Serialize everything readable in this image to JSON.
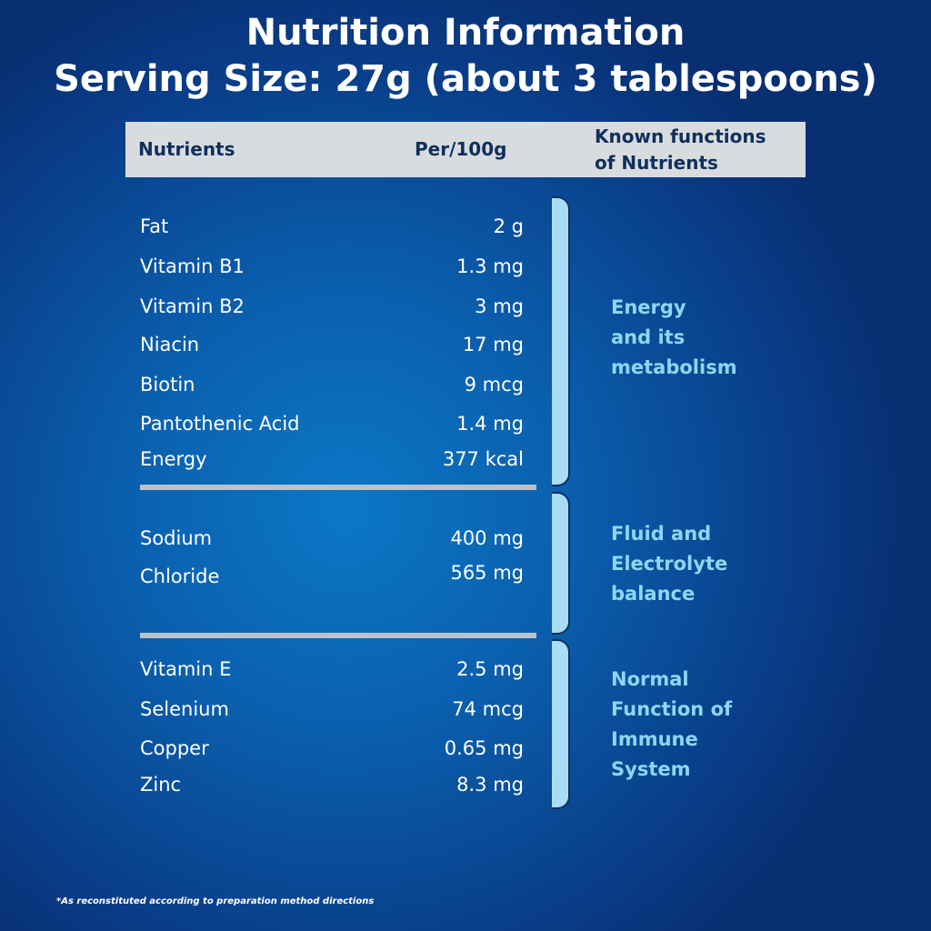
{
  "title": {
    "line1": "Nutrition Information",
    "line2": "Serving Size: 27g (about 3 tablespoons)"
  },
  "header": {
    "nutrients": "Nutrients",
    "per100g": "Per/100g",
    "functions": "Known functions\nof Nutrients"
  },
  "groups": [
    {
      "function": "Energy\nand its\nmetabolism",
      "rows": [
        {
          "name": "Fat",
          "value": "2 g"
        },
        {
          "name": "Vitamin B1",
          "value": "1.3 mg"
        },
        {
          "name": "Vitamin B2",
          "value": "3 mg"
        },
        {
          "name": "Niacin",
          "value": "17 mg"
        },
        {
          "name": "Biotin",
          "value": "9 mcg"
        },
        {
          "name": "Pantothenic Acid",
          "value": "1.4 mg"
        },
        {
          "name": "Energy",
          "value": "377 kcal"
        }
      ]
    },
    {
      "function": "Fluid and\nElectrolyte\nbalance",
      "rows": [
        {
          "name": "Sodium",
          "value": "400 mg"
        },
        {
          "name": "Chloride",
          "value": "565 mg"
        }
      ]
    },
    {
      "function": "Normal\nFunction of\nImmune\nSystem",
      "rows": [
        {
          "name": "Vitamin E",
          "value": "2.5 mg"
        },
        {
          "name": "Selenium",
          "value": "74 mcg"
        },
        {
          "name": "Copper",
          "value": "0.65 mg"
        },
        {
          "name": "Zinc",
          "value": "8.3 mg"
        }
      ]
    }
  ],
  "footnote": "*As reconstituted according to preparation method directions",
  "colors": {
    "background": "#0a5fad",
    "header_bar": "#d9dcdf",
    "header_text": "#0f2f5c",
    "function_text": "#8fd6f6",
    "bracket": "#a8ddf5"
  }
}
